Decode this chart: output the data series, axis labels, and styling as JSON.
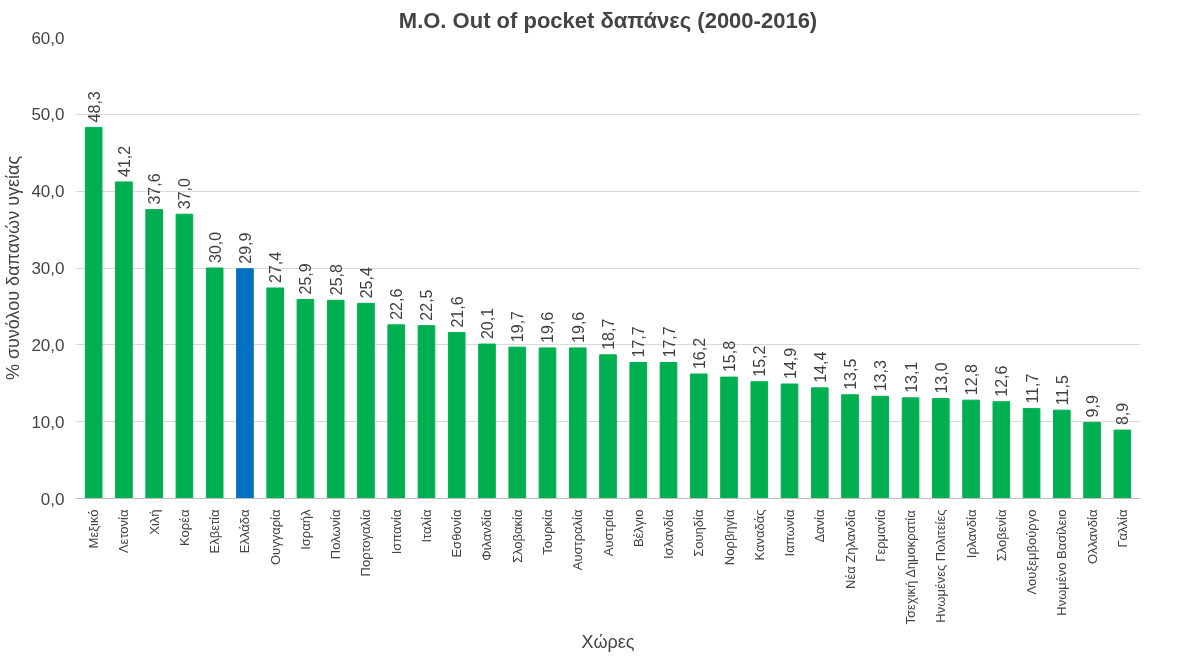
{
  "chart_data": {
    "type": "bar",
    "title": "M.O. Out of pocket δαπάνες (2000-2016)",
    "xlabel": "Χώρες",
    "ylabel": "% συνόλου δαπανών υγείας",
    "categories": [
      "Μεξικό",
      "Λετονία",
      "Χιλή",
      "Κορέα",
      "Ελβετία",
      "Ελλάδα",
      "Ουγγαρία",
      "Ισραήλ",
      "Πολωνία",
      "Πορτογαλία",
      "Ισπανία",
      "Ιταλία",
      "Εσθονία",
      "Φιλανδία",
      "Σλοβακία",
      "Τουρκία",
      "Αυστραλία",
      "Αυστρία",
      "Βέλγιο",
      "Ισλανδία",
      "Σουηδία",
      "Νορβηγία",
      "Καναδάς",
      "Ιαπωνία",
      "Δανία",
      "Νέα Ζηλανδία",
      "Γερμανία",
      "Τσεχική Δημοκρατία",
      "Ηνωμένες Πολιτείες",
      "Ιρλανδία",
      "Σλοβενία",
      "Λουξεμβούργο",
      "Ηνωμένο Βασίλειο",
      "Ολλανδία",
      "Γαλλία"
    ],
    "values": [
      48.3,
      41.2,
      37.6,
      37.0,
      30.0,
      29.9,
      27.4,
      25.9,
      25.8,
      25.4,
      22.6,
      22.5,
      21.6,
      20.1,
      19.7,
      19.6,
      19.6,
      18.7,
      17.7,
      17.7,
      16.2,
      15.8,
      15.2,
      14.9,
      14.4,
      13.5,
      13.3,
      13.1,
      13.0,
      12.8,
      12.6,
      11.7,
      11.5,
      9.9,
      8.9
    ],
    "value_labels": [
      "48,3",
      "41,2",
      "37,6",
      "37,0",
      "30,0",
      "29,9",
      "27,4",
      "25,9",
      "25,8",
      "25,4",
      "22,6",
      "22,5",
      "21,6",
      "20,1",
      "19,7",
      "19,6",
      "19,6",
      "18,7",
      "17,7",
      "17,7",
      "16,2",
      "15,8",
      "15,2",
      "14,9",
      "14,4",
      "13,5",
      "13,3",
      "13,1",
      "13,0",
      "12,8",
      "12,6",
      "11,7",
      "11,5",
      "9,9",
      "8,9"
    ],
    "colors": [
      "#00b050",
      "#00b050",
      "#00b050",
      "#00b050",
      "#00b050",
      "#0070c0",
      "#00b050",
      "#00b050",
      "#00b050",
      "#00b050",
      "#00b050",
      "#00b050",
      "#00b050",
      "#00b050",
      "#00b050",
      "#00b050",
      "#00b050",
      "#00b050",
      "#00b050",
      "#00b050",
      "#00b050",
      "#00b050",
      "#00b050",
      "#00b050",
      "#00b050",
      "#00b050",
      "#00b050",
      "#00b050",
      "#00b050",
      "#00b050",
      "#00b050",
      "#00b050",
      "#00b050",
      "#00b050",
      "#00b050"
    ],
    "ylim": [
      0,
      60
    ],
    "yticks": [
      {
        "value": 0,
        "label": "0,0"
      },
      {
        "value": 10,
        "label": "10,0"
      },
      {
        "value": 20,
        "label": "20,0"
      },
      {
        "value": 30,
        "label": "30,0"
      },
      {
        "value": 40,
        "label": "40,0"
      },
      {
        "value": 50,
        "label": "50,0"
      },
      {
        "value": 60,
        "label": "60,0"
      }
    ],
    "grid": "y"
  }
}
